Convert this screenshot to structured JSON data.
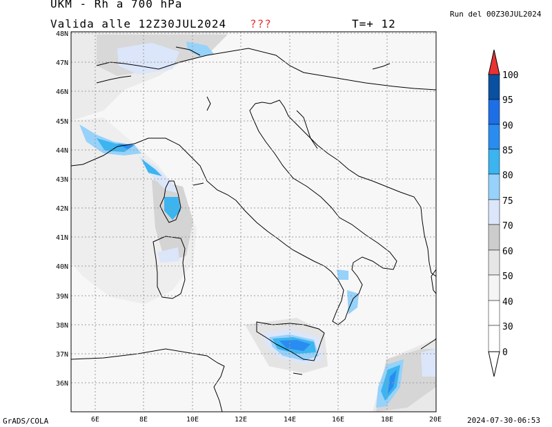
{
  "header": {
    "title": "UKM - Rh a 700 hPa",
    "valid": "Valida alle 12Z30JUL2024",
    "marker": "???",
    "timestep": "T=+ 12",
    "run": "Run del 00Z30JUL2024"
  },
  "footer": {
    "credit": "GrADS/COLA",
    "timestamp": "2024-07-30-06:53"
  },
  "map": {
    "lat_labels": [
      "48N",
      "47N",
      "46N",
      "45N",
      "44N",
      "43N",
      "42N",
      "41N",
      "40N",
      "39N",
      "38N",
      "37N",
      "36N"
    ],
    "lon_labels": [
      "6E",
      "8E",
      "10E",
      "12E",
      "14E",
      "16E",
      "18E",
      "20E"
    ],
    "lon_range": [
      5,
      20
    ],
    "lat_range": [
      35,
      48
    ]
  },
  "colorbar": {
    "levels": [
      "100",
      "95",
      "90",
      "85",
      "80",
      "75",
      "70",
      "60",
      "50",
      "40",
      "30",
      "0"
    ],
    "colors": [
      "#e83232",
      "#0a50a0",
      "#1e6ee6",
      "#2a8cf0",
      "#3cb4f0",
      "#96d2fa",
      "#dce6fa",
      "#cccccc",
      "#e6e6e6",
      "#f5f5f5",
      "#ffffff",
      "#ffffff"
    ]
  }
}
